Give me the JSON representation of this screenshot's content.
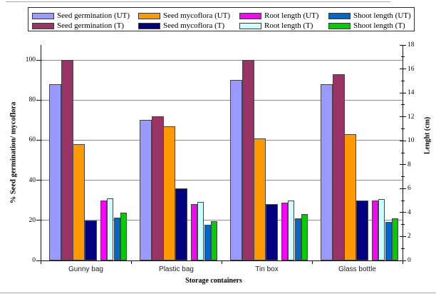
{
  "chart_data": {
    "type": "bar",
    "title": "",
    "categories": [
      "Gunny bag",
      "Plastic bag",
      "Tin box",
      "Glass bottle"
    ],
    "series": [
      {
        "name": "Seed germination (UT)",
        "axis": "left",
        "color": "#9999FF",
        "values": [
          88,
          70,
          90,
          88
        ]
      },
      {
        "name": "Seed germination (T)",
        "axis": "left",
        "color": "#993366",
        "values": [
          100,
          72,
          100,
          93
        ]
      },
      {
        "name": "Seed mycoflora (UT)",
        "axis": "left",
        "color": "#FF9900",
        "values": [
          58,
          67,
          61,
          63
        ]
      },
      {
        "name": "Seed mycoflora (T)",
        "axis": "left",
        "color": "#000080",
        "values": [
          20,
          36,
          28,
          30
        ]
      },
      {
        "name": "Root length (UT)",
        "axis": "right",
        "color": "#FF00FF",
        "values": [
          5.0,
          4.7,
          4.8,
          5.0
        ]
      },
      {
        "name": "Root length (T)",
        "axis": "right",
        "color": "#CCFFFF",
        "values": [
          5.2,
          4.9,
          5.0,
          5.1
        ]
      },
      {
        "name": "Shoot length (UT)",
        "axis": "right",
        "color": "#0066CC",
        "values": [
          3.6,
          3.0,
          3.5,
          3.2
        ]
      },
      {
        "name": "Shoot length (T)",
        "axis": "right",
        "color": "#00CC00",
        "values": [
          4.0,
          3.3,
          3.9,
          3.5
        ]
      }
    ],
    "xlabel": "Storage containers",
    "ylabel_left": "% Seed germination/ mycoflora",
    "ylabel_right": "Lenght (cm)",
    "axes": {
      "left": {
        "min": 0,
        "max": 100,
        "ticks": [
          0,
          20,
          40,
          60,
          80,
          100
        ]
      },
      "right": {
        "min": 0,
        "max": 18,
        "ticks": [
          0,
          2,
          4,
          6,
          8,
          10,
          12,
          14,
          16,
          18
        ],
        "minor_step": 1
      }
    },
    "grid": "horizontal-major-left-axis",
    "legend_position": "top",
    "legend_layout": "2 rows x 4 columns, column-major pairs UT/T",
    "bar_style": "left-axis series wide bars, right-axis series narrow bars"
  }
}
